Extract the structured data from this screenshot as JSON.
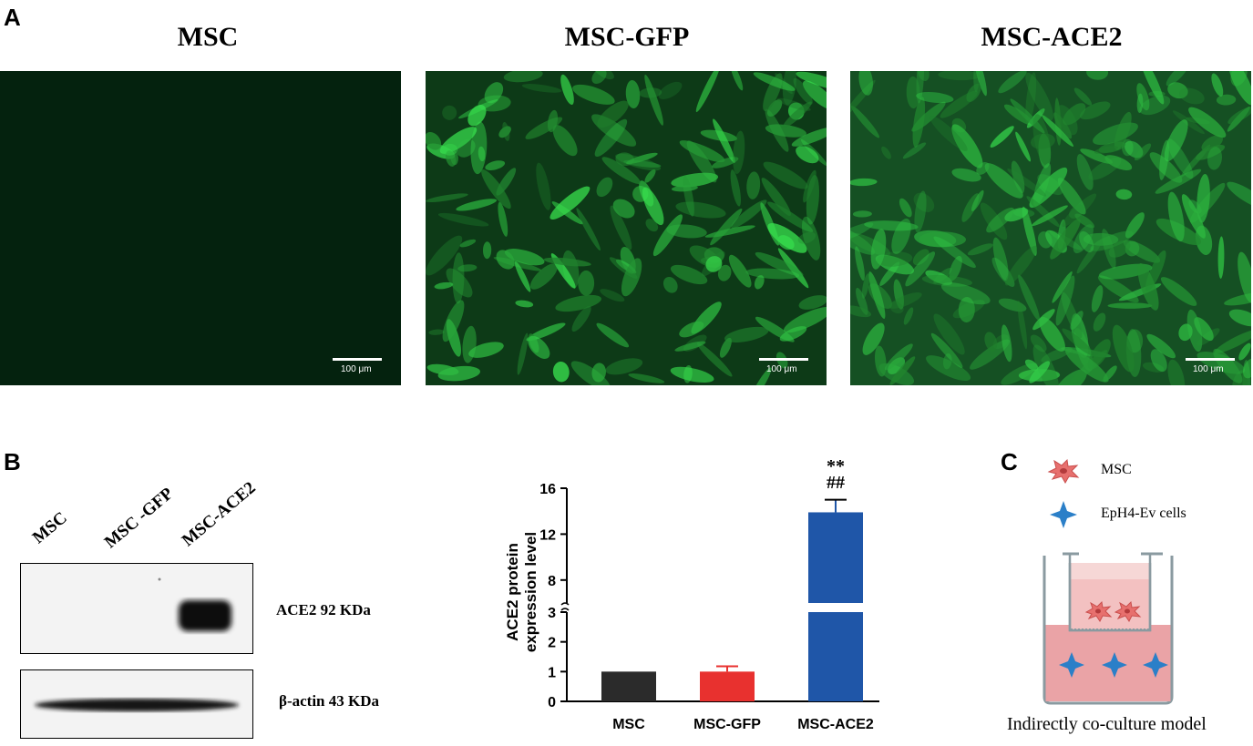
{
  "panels": {
    "a": {
      "letter": "A",
      "images": [
        {
          "title": "MSC",
          "scale_label": "100 μm"
        },
        {
          "title": "MSC-GFP",
          "scale_label": "100 μm"
        },
        {
          "title": "MSC-ACE2",
          "scale_label": "100 μm"
        }
      ]
    },
    "b": {
      "letter": "B",
      "lanes": [
        "MSC",
        "MSC -GFP",
        "MSC-ACE2"
      ],
      "blots": [
        {
          "label": "ACE2  92 KDa"
        },
        {
          "label": "β-actin  43 KDa"
        }
      ]
    },
    "c": {
      "letter": "C",
      "legend": [
        {
          "label": "MSC",
          "icon": "msc-cell-icon",
          "color": "#e7706e"
        },
        {
          "label": "EpH4-Ev cells",
          "icon": "star-cell-icon",
          "color": "#2b7fc8"
        }
      ],
      "caption": "Indirectly co-culture model"
    }
  },
  "chart_data": {
    "type": "bar",
    "categories": [
      "MSC",
      "MSC-GFP",
      "MSC-ACE2"
    ],
    "values": [
      1.0,
      1.0,
      13.9
    ],
    "errors": [
      0,
      0.18,
      1.1
    ],
    "colors": [
      "#2b2b2b",
      "#e8312f",
      "#1f56a8"
    ],
    "ylabel": "ACE2 protein\nexpression level",
    "ylabel_lines": [
      "ACE2 protein",
      "expression level"
    ],
    "y_axis_break": {
      "lower": [
        0,
        3
      ],
      "upper": [
        6,
        16
      ]
    },
    "yticks_lower": [
      0,
      1,
      2,
      3
    ],
    "yticks_upper": [
      8,
      12,
      16
    ],
    "annotations": [
      {
        "category": "MSC-ACE2",
        "lines": [
          "**",
          "##"
        ]
      }
    ]
  }
}
